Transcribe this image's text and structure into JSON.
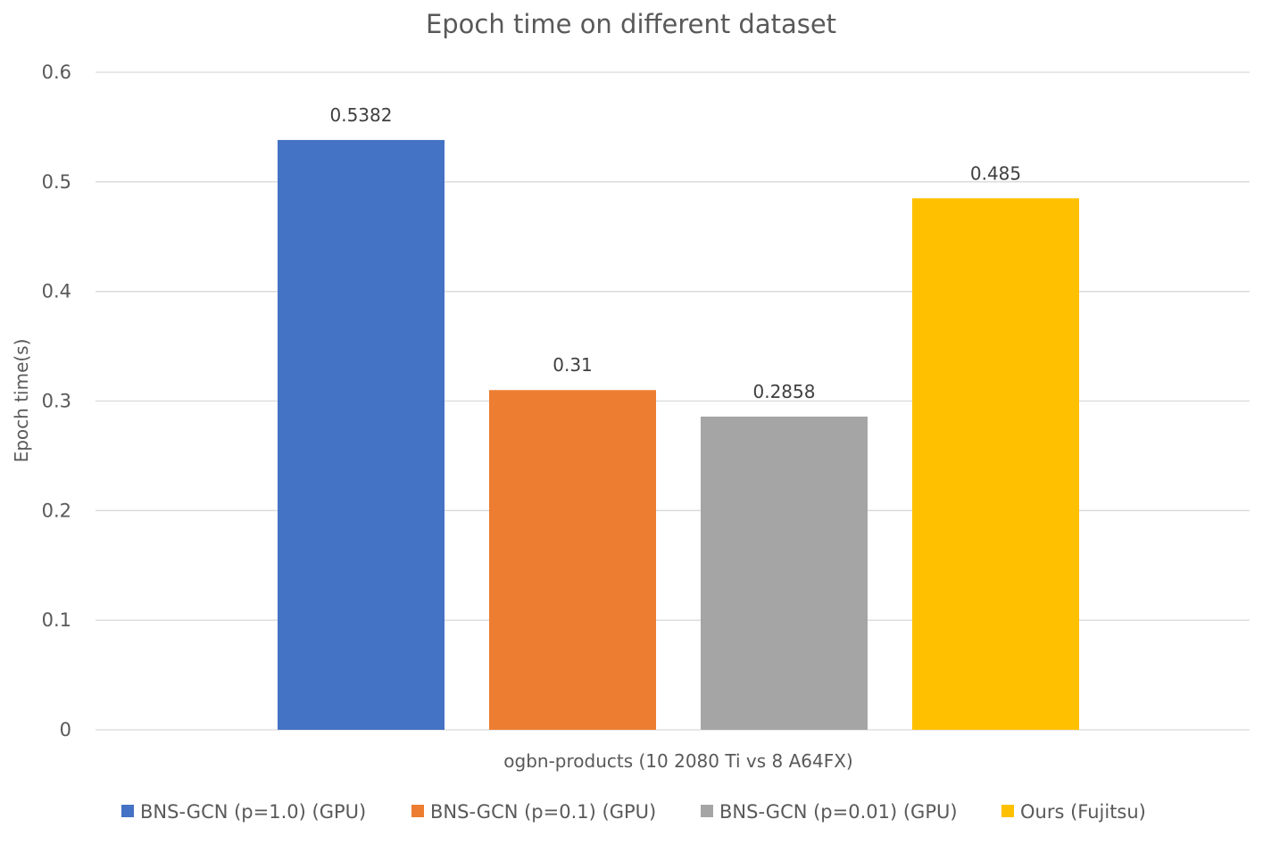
{
  "chart_data": {
    "type": "bar",
    "title": "Epoch time on different dataset",
    "xlabel": "",
    "ylabel": "Epoch time(s)",
    "categories": [
      "ogbn-products (10 2080 Ti vs 8 A64FX)"
    ],
    "series": [
      {
        "name": "BNS-GCN (p=1.0) (GPU)",
        "values": [
          0.5382
        ],
        "label": "0.5382",
        "color": "#4472c4"
      },
      {
        "name": "BNS-GCN (p=0.1) (GPU)",
        "values": [
          0.31
        ],
        "label": "0.31",
        "color": "#ed7d31"
      },
      {
        "name": "BNS-GCN (p=0.01) (GPU)",
        "values": [
          0.2858
        ],
        "label": "0.2858",
        "color": "#a5a5a5"
      },
      {
        "name": "Ours (Fujitsu)",
        "values": [
          0.485
        ],
        "label": "0.485",
        "color": "#ffc000"
      }
    ],
    "ylim": [
      0,
      0.6
    ],
    "yticks": [
      {
        "value": 0,
        "label": "0"
      },
      {
        "value": 0.1,
        "label": "0.1"
      },
      {
        "value": 0.2,
        "label": "0.2"
      },
      {
        "value": 0.3,
        "label": "0.3"
      },
      {
        "value": 0.4,
        "label": "0.4"
      },
      {
        "value": 0.5,
        "label": "0.5"
      },
      {
        "value": 0.6,
        "label": "0.6"
      }
    ],
    "grid": true,
    "legend": "bottom"
  }
}
